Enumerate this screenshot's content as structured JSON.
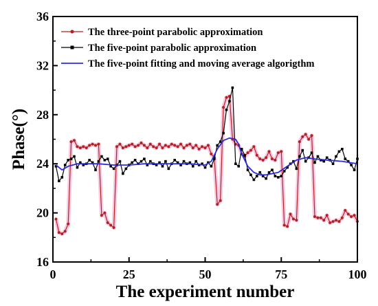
{
  "chart_data": {
    "type": "line",
    "xlabel": "The experiment number",
    "ylabel": "Phase(°)",
    "xlim": [
      0,
      100
    ],
    "ylim": [
      16,
      36
    ],
    "xticks": [
      0,
      25,
      50,
      75,
      100
    ],
    "yticks": [
      16,
      20,
      24,
      28,
      32,
      36
    ],
    "legend_position": "top-left",
    "grid": false,
    "series": [
      {
        "name": "The three-point parabolic approximation",
        "color": "#b22222",
        "marker": "circle",
        "x": [
          1,
          2,
          3,
          4,
          5,
          6,
          7,
          8,
          9,
          10,
          11,
          12,
          13,
          14,
          15,
          16,
          17,
          18,
          19,
          20,
          21,
          22,
          23,
          24,
          25,
          26,
          27,
          28,
          29,
          30,
          31,
          32,
          33,
          34,
          35,
          36,
          37,
          38,
          39,
          40,
          41,
          42,
          43,
          44,
          45,
          46,
          47,
          48,
          49,
          50,
          51,
          52,
          53,
          54,
          55,
          56,
          57,
          58,
          59,
          60,
          61,
          62,
          63,
          64,
          65,
          66,
          67,
          68,
          69,
          70,
          71,
          72,
          73,
          74,
          75,
          76,
          77,
          78,
          79,
          80,
          81,
          82,
          83,
          84,
          85,
          86,
          87,
          88,
          89,
          90,
          91,
          92,
          93,
          94,
          95,
          96,
          97,
          98,
          99,
          100
        ],
        "y": [
          19.5,
          18.4,
          18.3,
          18.5,
          19.1,
          25.8,
          25.9,
          25.4,
          25.3,
          25.4,
          25.3,
          25.5,
          25.6,
          25.5,
          25.6,
          19.8,
          20.0,
          19.2,
          19.0,
          18.8,
          25.4,
          25.6,
          25.3,
          25.4,
          25.5,
          25.6,
          25.4,
          25.5,
          25.7,
          25.5,
          25.3,
          25.6,
          25.4,
          25.3,
          25.6,
          25.3,
          25.5,
          25.4,
          25.6,
          25.5,
          25.4,
          25.6,
          25.3,
          25.5,
          25.6,
          25.3,
          25.5,
          25.2,
          25.4,
          25.3,
          25.5,
          24.8,
          24.5,
          20.7,
          21.0,
          28.6,
          29.4,
          29.5,
          26.0,
          25.6,
          25.5,
          24.8,
          24.6,
          24.9,
          25.1,
          25.4,
          24.7,
          24.4,
          24.3,
          24.5,
          25.0,
          24.4,
          24.3,
          24.9,
          25.0,
          19.0,
          18.9,
          19.9,
          19.5,
          19.4,
          25.8,
          26.2,
          26.4,
          26.0,
          26.3,
          19.7,
          19.6,
          19.6,
          19.4,
          19.8,
          19.2,
          19.3,
          19.4,
          19.3,
          19.6,
          20.2,
          19.9,
          19.7,
          19.8,
          19.3
        ]
      },
      {
        "name": "The five-point parabolic approximation",
        "color": "#000000",
        "marker": "square",
        "x": [
          1,
          2,
          3,
          4,
          5,
          6,
          7,
          8,
          9,
          10,
          11,
          12,
          13,
          14,
          15,
          16,
          17,
          18,
          19,
          20,
          21,
          22,
          23,
          24,
          25,
          26,
          27,
          28,
          29,
          30,
          31,
          32,
          33,
          34,
          35,
          36,
          37,
          38,
          39,
          40,
          41,
          42,
          43,
          44,
          45,
          46,
          47,
          48,
          49,
          50,
          51,
          52,
          53,
          54,
          55,
          56,
          57,
          58,
          59,
          60,
          61,
          62,
          63,
          64,
          65,
          66,
          67,
          68,
          69,
          70,
          71,
          72,
          73,
          74,
          75,
          76,
          77,
          78,
          79,
          80,
          81,
          82,
          83,
          84,
          85,
          86,
          87,
          88,
          89,
          90,
          91,
          92,
          93,
          94,
          95,
          96,
          97,
          98,
          99,
          100
        ],
        "y": [
          23.8,
          22.6,
          22.9,
          23.9,
          24.3,
          24.4,
          24.6,
          23.7,
          24.1,
          23.9,
          24.0,
          24.3,
          24.1,
          23.5,
          24.2,
          24.6,
          24.3,
          24.4,
          23.8,
          23.6,
          23.9,
          24.2,
          23.2,
          23.6,
          23.9,
          24.1,
          24.3,
          24.0,
          24.2,
          24.4,
          23.9,
          24.2,
          24.0,
          23.9,
          24.1,
          23.8,
          24.2,
          23.6,
          24.0,
          24.3,
          24.1,
          23.9,
          24.2,
          24.0,
          24.1,
          23.8,
          24.2,
          23.9,
          24.0,
          23.7,
          24.1,
          23.8,
          24.4,
          25.5,
          25.8,
          26.5,
          28.4,
          29.1,
          30.2,
          24.0,
          23.8,
          25.2,
          24.7,
          23.5,
          23.1,
          22.7,
          23.0,
          23.3,
          23.0,
          22.8,
          23.3,
          23.5,
          23.0,
          22.9,
          23.0,
          23.4,
          23.7,
          24.0,
          24.2,
          23.6,
          24.6,
          25.1,
          24.2,
          24.5,
          24.9,
          24.1,
          24.6,
          24.3,
          24.2,
          24.5,
          24.3,
          24.0,
          24.6,
          25.0,
          25.2,
          24.4,
          24.2,
          23.9,
          23.5,
          24.4
        ]
      },
      {
        "name": "The five-point fitting and moving average algorigthm",
        "color": "#2b2bdc",
        "marker": "none",
        "x": [
          1,
          3,
          5,
          8,
          10,
          15,
          20,
          25,
          30,
          35,
          40,
          45,
          50,
          52,
          54,
          56,
          58,
          60,
          61,
          62,
          64,
          66,
          68,
          70,
          74,
          77,
          80,
          83,
          86,
          90,
          95,
          100
        ],
        "y": [
          23.9,
          23.5,
          23.8,
          24.0,
          24.0,
          24.0,
          23.9,
          23.9,
          24.0,
          24.0,
          24.0,
          24.0,
          23.9,
          24.2,
          25.2,
          25.9,
          26.1,
          26.0,
          25.6,
          24.8,
          23.8,
          23.3,
          23.1,
          23.1,
          23.3,
          23.8,
          24.3,
          24.5,
          24.4,
          24.3,
          24.2,
          24.0
        ]
      }
    ]
  }
}
